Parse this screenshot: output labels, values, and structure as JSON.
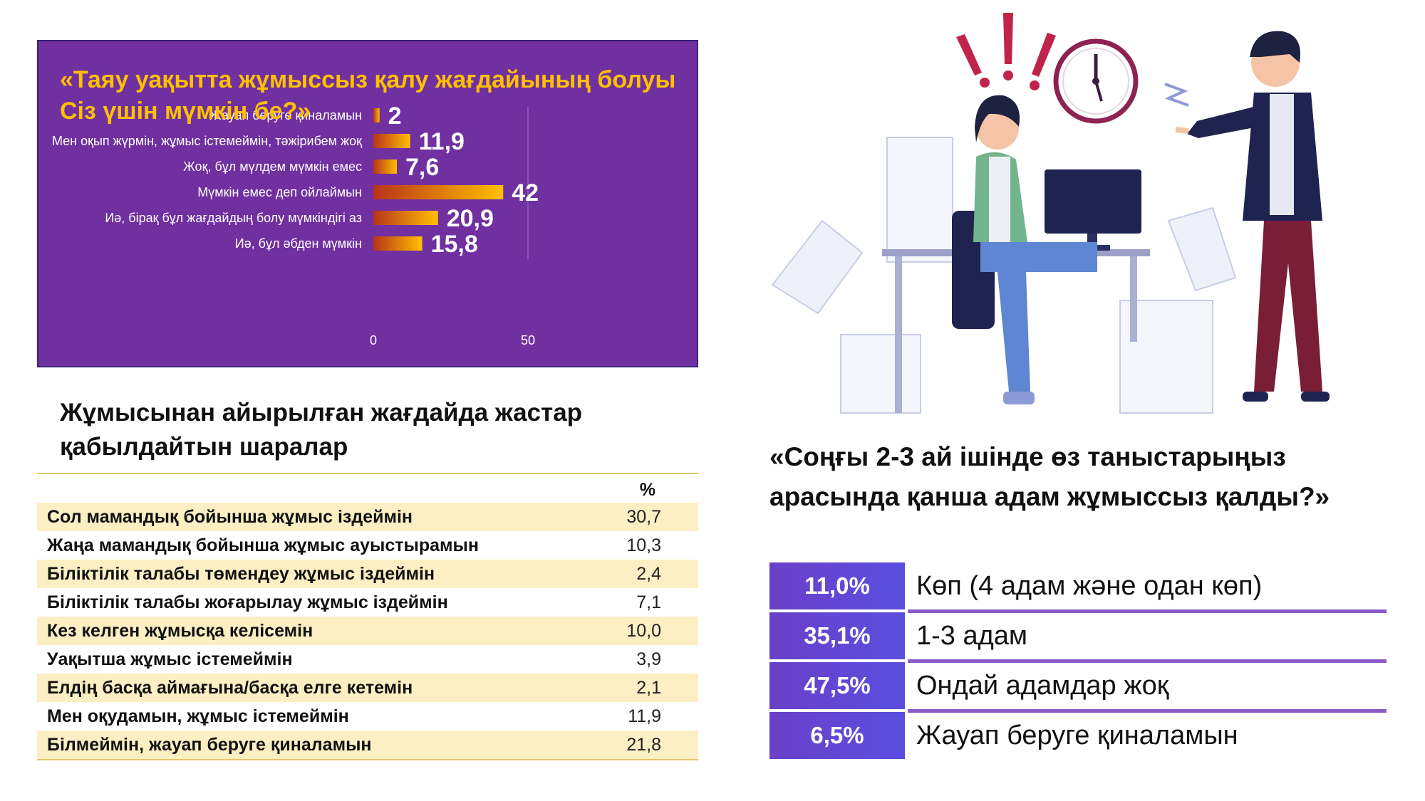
{
  "chart_data": {
    "type": "bar",
    "title": "«Таяу уақытта жұмыссыз қалу жағдайының болуы Сіз үшін мүмкін бе?»",
    "categories": [
      "Жауап беруге қиналамын",
      "Мен оқып жүрмін, жұмыс істемеймін, тәжірибем жоқ",
      "Жоқ, бұл мүлдем мүмкін емес",
      "Мүмкін емес деп ойлаймын",
      "Иә, бірақ бұл жағдайдың болу мүмкіндігі аз",
      "Иә, бұл әбден мүмкін"
    ],
    "values": [
      2,
      11.9,
      7.6,
      42,
      20.9,
      15.8
    ],
    "value_labels": [
      "2",
      "11,9",
      "7,6",
      "42",
      "20,9",
      "15,8"
    ],
    "xlim": [
      0,
      50
    ],
    "x_ticks": [
      "0",
      "50"
    ],
    "orientation": "horizontal",
    "colors": {
      "bar_start": "#b8331a",
      "bar_end": "#ffc000",
      "background": "#7030a0",
      "title": "#ffc000"
    }
  },
  "measures": {
    "title": "Жұмысынан айырылған жағдайда жастар қабылдайтын шаралар",
    "pct_header": "%",
    "rows": [
      {
        "label": "Сол мамандық бойынша жұмыс іздеймін",
        "value": "30,7"
      },
      {
        "label": "Жаңа мамандық бойынша жұмыс ауыстырамын",
        "value": "10,3"
      },
      {
        "label": "Біліктілік талабы төмендеу жұмыс іздеймін",
        "value": "2,4"
      },
      {
        "label": "Біліктілік талабы жоғарылау жұмыс іздеймін",
        "value": "7,1"
      },
      {
        "label": "Кез келген жұмысқа келісемін",
        "value": "10,0"
      },
      {
        "label": "Уақытша жұмыс істемеймін",
        "value": "3,9"
      },
      {
        "label": "Елдің басқа аймағына/басқа елге кетемін",
        "value": "2,1"
      },
      {
        "label": "Мен оқудамын, жұмыс істемеймін",
        "value": "11,9"
      },
      {
        "label": "Білмеймін, жауап беруге қиналамын",
        "value": "21,8"
      }
    ]
  },
  "acquaintances": {
    "title": "«Соңғы 2-3 ай ішінде өз таныстарыңыз арасында қанша адам жұмыссыз қалды?»",
    "rows": [
      {
        "pct": "11,0%",
        "label": "Көп (4 адам және одан көп)"
      },
      {
        "pct": "35,1%",
        "label": "1-3 адам"
      },
      {
        "pct": "47,5%",
        "label": "Ондай адамдар жоқ"
      },
      {
        "pct": "6,5%",
        "label": "Жауап беруге қиналамын"
      }
    ]
  },
  "illustration": {
    "icons": [
      "alarm-exclamation-icon",
      "wall-clock-icon",
      "office-worker-woman",
      "manager-man",
      "paper-stacks-icon"
    ]
  }
}
